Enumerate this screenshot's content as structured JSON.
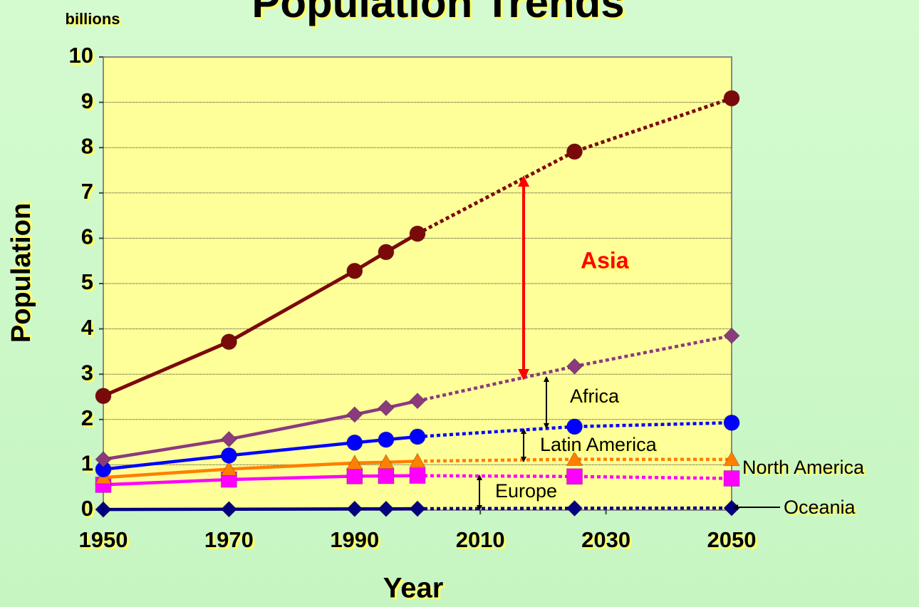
{
  "chart_data": {
    "type": "line",
    "stacked": true,
    "title": "Population Trends",
    "unit_label": "billions",
    "ylabel": "Population",
    "xlabel": "Year",
    "x": [
      1950,
      1970,
      1990,
      1995,
      2000,
      2025,
      2050
    ],
    "projection_start": 2000,
    "xlim": [
      1950,
      2050
    ],
    "xticks": [
      1950,
      1970,
      1990,
      2010,
      2030,
      2050
    ],
    "ylim": [
      0,
      10
    ],
    "yticks": [
      0,
      1,
      2,
      3,
      4,
      5,
      6,
      7,
      8,
      9,
      10
    ],
    "grid": true,
    "series": [
      {
        "name": "Oceania",
        "color": "#000080",
        "marker": "diamond",
        "values": [
          0.013,
          0.019,
          0.027,
          0.028,
          0.031,
          0.04,
          0.046
        ]
      },
      {
        "name": "Europe",
        "color": "#ff00ff",
        "marker": "square",
        "values": [
          0.547,
          0.656,
          0.722,
          0.727,
          0.729,
          0.702,
          0.653
        ]
      },
      {
        "name": "North America",
        "color": "#ff7f00",
        "marker": "triangle",
        "values": [
          0.16,
          0.23,
          0.29,
          0.3,
          0.32,
          0.38,
          0.42
        ]
      },
      {
        "name": "Latin America",
        "color": "#0000ff",
        "marker": "circle",
        "values": [
          0.18,
          0.3,
          0.45,
          0.5,
          0.54,
          0.72,
          0.81
        ]
      },
      {
        "name": "Africa",
        "color": "#8b3a7e",
        "marker": "diamond",
        "values": [
          0.22,
          0.36,
          0.62,
          0.7,
          0.79,
          1.33,
          1.92
        ]
      },
      {
        "name": "Asia",
        "color": "#7a0a0a",
        "marker": "circle",
        "values": [
          1.4,
          2.15,
          3.17,
          3.44,
          3.69,
          4.74,
          5.24
        ]
      }
    ]
  }
}
